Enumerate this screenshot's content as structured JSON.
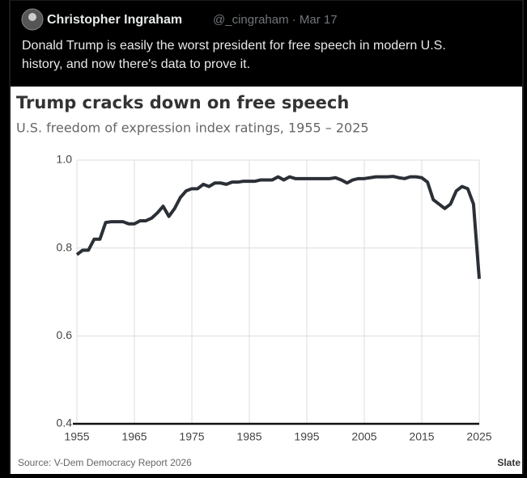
{
  "tweet": {
    "author": "Christopher Ingraham",
    "meta": "@_cingraham · Mar 17",
    "text_lines": [
      "Donald Trump is easily the worst president for free speech in modern U.S.",
      "history, and now there's data to prove it."
    ]
  },
  "chart_data": {
    "type": "line",
    "title": "Trump cracks down on free speech",
    "subtitle": "U.S. freedom of expression index ratings, 1955 – 2025",
    "source": "Source: V-Dem Democracy Report 2026",
    "brand": "Slate",
    "color": "#2b2f36",
    "x": [
      1955,
      1956,
      1957,
      1958,
      1959,
      1960,
      1961,
      1962,
      1963,
      1964,
      1965,
      1966,
      1967,
      1968,
      1969,
      1970,
      1971,
      1972,
      1973,
      1974,
      1975,
      1976,
      1977,
      1978,
      1979,
      1980,
      1981,
      1982,
      1983,
      1984,
      1985,
      1986,
      1987,
      1988,
      1989,
      1990,
      1991,
      1992,
      1993,
      1994,
      1995,
      1996,
      1997,
      1998,
      1999,
      2000,
      2001,
      2002,
      2003,
      2004,
      2005,
      2006,
      2007,
      2008,
      2009,
      2010,
      2011,
      2012,
      2013,
      2014,
      2015,
      2016,
      2017,
      2018,
      2019,
      2020,
      2021,
      2022,
      2023,
      2024,
      2025
    ],
    "values": [
      0.785,
      0.795,
      0.795,
      0.82,
      0.82,
      0.858,
      0.86,
      0.86,
      0.86,
      0.855,
      0.855,
      0.862,
      0.862,
      0.868,
      0.88,
      0.895,
      0.872,
      0.89,
      0.915,
      0.93,
      0.935,
      0.935,
      0.945,
      0.94,
      0.948,
      0.948,
      0.945,
      0.95,
      0.95,
      0.952,
      0.952,
      0.952,
      0.955,
      0.955,
      0.955,
      0.962,
      0.955,
      0.962,
      0.958,
      0.958,
      0.958,
      0.958,
      0.958,
      0.958,
      0.958,
      0.96,
      0.955,
      0.948,
      0.955,
      0.958,
      0.958,
      0.96,
      0.962,
      0.962,
      0.962,
      0.963,
      0.96,
      0.958,
      0.962,
      0.962,
      0.96,
      0.95,
      0.91,
      0.9,
      0.89,
      0.9,
      0.93,
      0.94,
      0.935,
      0.9,
      0.73
    ],
    "xlim": [
      1955,
      2025
    ],
    "xticks": [
      1955,
      1965,
      1975,
      1985,
      1995,
      2005,
      2015,
      2025
    ],
    "ylim": [
      0.4,
      1.0
    ],
    "yticks": [
      0.4,
      0.6,
      0.8,
      {
        "value": 1.0,
        "label": "1.0"
      }
    ],
    "grid": true
  }
}
